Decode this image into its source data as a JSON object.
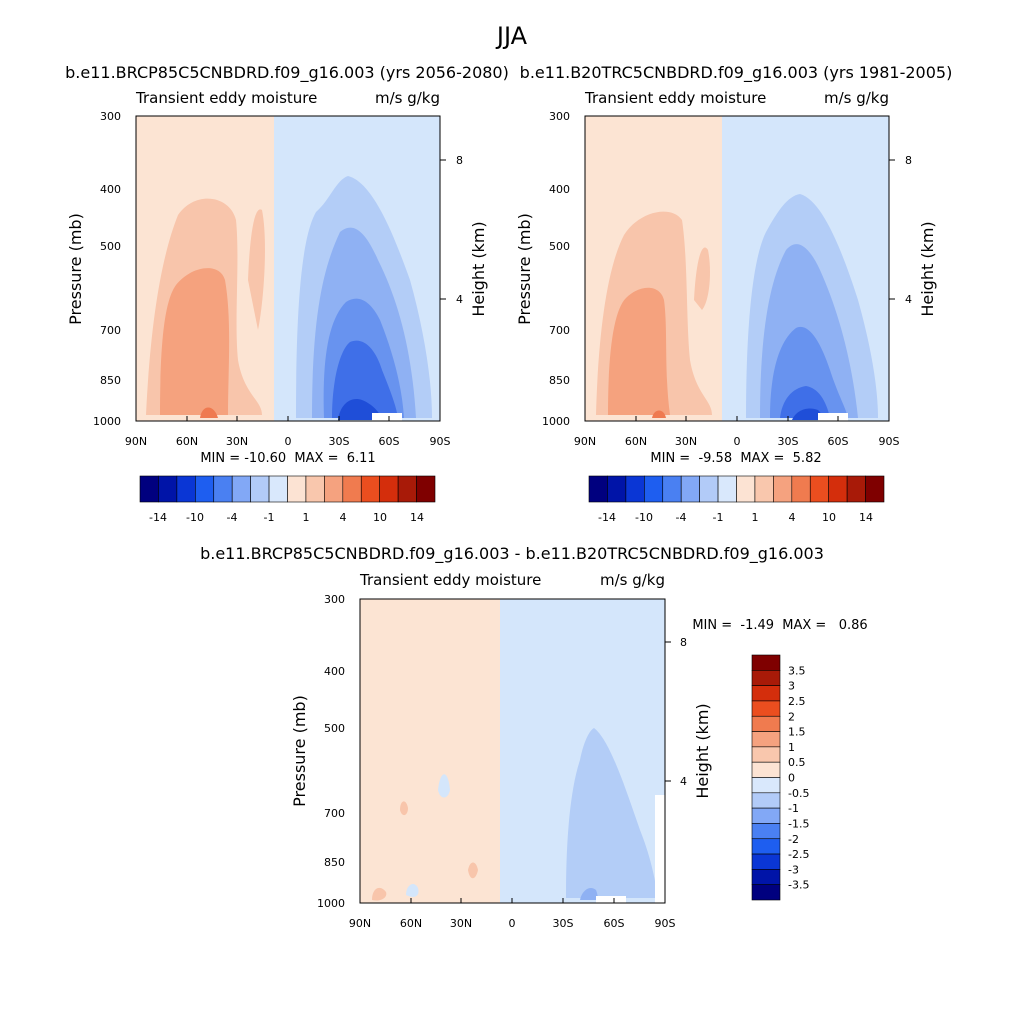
{
  "figure_title": "JJA",
  "chart_data": [
    {
      "type": "heatmap",
      "title": "b.e11.BRCP85C5CNBDRD.f09_g16.003 (yrs 2056-2080)",
      "subtitle_left": "Transient eddy moisture",
      "subtitle_right": "m/s g/kg",
      "xlabel": "",
      "ylabel": "Pressure (mb)",
      "y2label": "Height (km)",
      "x_ticks": [
        "90N",
        "60N",
        "30N",
        "0",
        "30S",
        "60S",
        "90S"
      ],
      "y_ticks": [
        300,
        400,
        500,
        700,
        850,
        1000
      ],
      "y2_ticks": [
        8,
        4
      ],
      "ylim": [
        1000,
        300
      ],
      "min_max_label": "MIN = -10.60  MAX =  6.11",
      "contour_levels": [
        -14,
        -12,
        -10,
        -8,
        -6,
        -4,
        -2,
        -1,
        1,
        2,
        4,
        6,
        8,
        10,
        12,
        14
      ],
      "colorbar_labels": [
        "-14",
        "-10",
        "-4",
        "-1",
        "1",
        "4",
        "10",
        "14"
      ],
      "colorbar": "horizontal-below"
    },
    {
      "type": "heatmap",
      "title": "b.e11.B20TRC5CNBDRD.f09_g16.003 (yrs 1981-2005)",
      "subtitle_left": "Transient eddy moisture",
      "subtitle_right": "m/s g/kg",
      "xlabel": "",
      "ylabel": "Pressure (mb)",
      "y2label": "Height (km)",
      "x_ticks": [
        "90N",
        "60N",
        "30N",
        "0",
        "30S",
        "60S",
        "90S"
      ],
      "y_ticks": [
        300,
        400,
        500,
        700,
        850,
        1000
      ],
      "y2_ticks": [
        8,
        4
      ],
      "ylim": [
        1000,
        300
      ],
      "min_max_label": "MIN =  -9.58  MAX =  5.82",
      "contour_levels": [
        -14,
        -12,
        -10,
        -8,
        -6,
        -4,
        -2,
        -1,
        1,
        2,
        4,
        6,
        8,
        10,
        12,
        14
      ],
      "colorbar_labels": [
        "-14",
        "-10",
        "-4",
        "-1",
        "1",
        "4",
        "10",
        "14"
      ],
      "colorbar": "horizontal-below"
    },
    {
      "type": "heatmap",
      "title": "b.e11.BRCP85C5CNBDRD.f09_g16.003 - b.e11.B20TRC5CNBDRD.f09_g16.003",
      "subtitle_left": "Transient eddy moisture",
      "subtitle_right": "m/s g/kg",
      "xlabel": "",
      "ylabel": "Pressure (mb)",
      "y2label": "Height (km)",
      "x_ticks": [
        "90N",
        "60N",
        "30N",
        "0",
        "30S",
        "60S",
        "90S"
      ],
      "y_ticks": [
        300,
        400,
        500,
        700,
        850,
        1000
      ],
      "y2_ticks": [
        8,
        4
      ],
      "ylim": [
        1000,
        300
      ],
      "min_max_label": "MIN =  -1.49  MAX =   0.86",
      "contour_levels": [
        -3.5,
        -3,
        -2.5,
        -2,
        -1.5,
        -1,
        -0.5,
        0,
        0.5,
        1,
        1.5,
        2,
        2.5,
        3,
        3.5
      ],
      "colorbar_labels": [
        "3.5",
        "3",
        "2.5",
        "2",
        "1.5",
        "1",
        "0.5",
        "0",
        "-0.5",
        "-1",
        "-1.5",
        "-2",
        "-2.5",
        "-3",
        "-3.5"
      ],
      "colorbar": "vertical-right"
    }
  ],
  "colorbar_colors": [
    "#00007f",
    "#0014a8",
    "#0a36d5",
    "#1e5ef0",
    "#4a80f2",
    "#82a8f6",
    "#b2cbf8",
    "#d9e8fc",
    "#fce3d3",
    "#f9c7ad",
    "#f5a27f",
    "#f07b4f",
    "#eb4e1f",
    "#d42e0c",
    "#a81a08",
    "#7f0000"
  ],
  "colors": {
    "pos_light": "#fce4d3",
    "pos_2": "#f8c5ab",
    "pos_3": "#f5a27e",
    "pos_4": "#ef7a50",
    "pos_5": "#e45a2a",
    "neg_light": "#d4e6fb",
    "neg_2": "#b3cdf7",
    "neg_3": "#8fb1f3",
    "neg_4": "#6893ef",
    "neg_5": "#3f6fe8",
    "neg_6": "#1f4ed8"
  }
}
